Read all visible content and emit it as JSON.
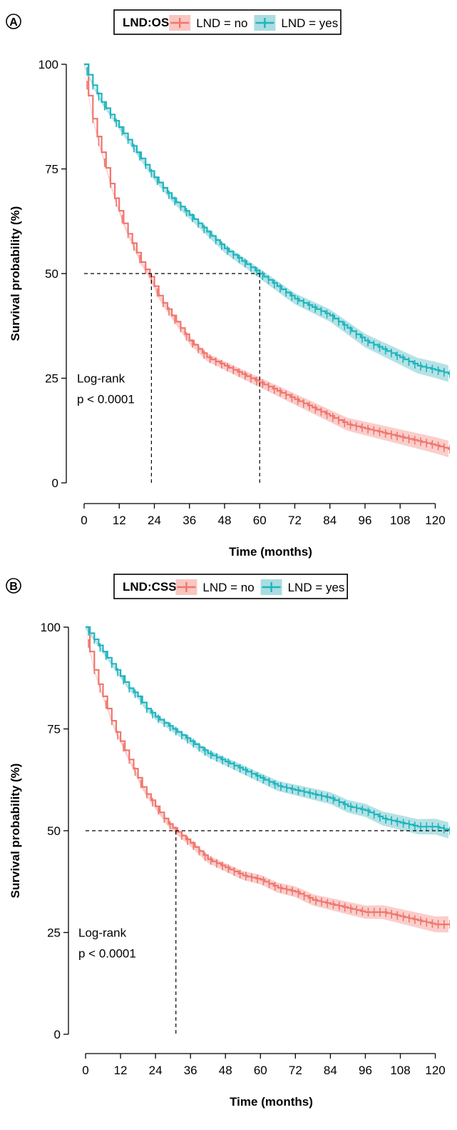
{
  "colors": {
    "no": "#F0766E",
    "yes": "#1FB5BE",
    "no_band": "#F9C6C2",
    "yes_band": "#A9DDE0",
    "axis": "#000000",
    "guide": "#000000"
  },
  "chart_data": [
    {
      "type": "line",
      "panel_label": "A",
      "legend_title": "LND:OS",
      "legend_placement": "top",
      "xlabel": "Time (months)",
      "ylabel": "Survival probability (%)",
      "xlim": [
        0,
        125
      ],
      "ylim": [
        0,
        100
      ],
      "x_ticks": [
        0,
        12,
        24,
        36,
        48,
        60,
        72,
        84,
        96,
        108,
        120
      ],
      "y_ticks": [
        0,
        25,
        50,
        75,
        100
      ],
      "annotation": [
        "Log-rank",
        "p < 0.0001"
      ],
      "median_lines": [
        23,
        60
      ],
      "series": [
        {
          "name": "LND = no",
          "color_key": "no",
          "x": [
            0,
            2,
            4,
            6,
            8,
            10,
            12,
            14,
            16,
            18,
            20,
            22,
            24,
            26,
            30,
            36,
            42,
            48,
            54,
            60,
            66,
            72,
            78,
            84,
            90,
            96,
            102,
            108,
            114,
            120,
            125
          ],
          "y": [
            100,
            90,
            84,
            79,
            74,
            69,
            65,
            61,
            58,
            55,
            52,
            50,
            47,
            44,
            40,
            34,
            30,
            28,
            26,
            24,
            22,
            20,
            18,
            16,
            14,
            13,
            12,
            11,
            10,
            9,
            8
          ]
        },
        {
          "name": "LND = yes",
          "color_key": "yes",
          "x": [
            0,
            3,
            6,
            9,
            12,
            15,
            18,
            21,
            24,
            30,
            36,
            42,
            48,
            54,
            60,
            66,
            72,
            78,
            84,
            90,
            96,
            102,
            108,
            114,
            120,
            125
          ],
          "y": [
            100,
            95,
            91,
            88,
            85,
            82,
            79,
            76,
            73,
            68,
            64,
            60,
            56,
            53,
            50,
            47,
            44,
            42,
            40,
            37,
            34,
            32,
            30,
            28,
            27,
            26
          ]
        }
      ]
    },
    {
      "type": "line",
      "panel_label": "B",
      "legend_title": "LND:CSS",
      "legend_placement": "top",
      "xlabel": "Time (months)",
      "ylabel": "Survival probability (%)",
      "xlim": [
        0,
        125
      ],
      "ylim": [
        0,
        100
      ],
      "x_ticks": [
        0,
        12,
        24,
        36,
        48,
        60,
        72,
        84,
        96,
        108,
        120
      ],
      "y_ticks": [
        0,
        25,
        50,
        75,
        100
      ],
      "annotation": [
        "Log-rank",
        "p < 0.0001"
      ],
      "median_lines": [
        31
      ],
      "series": [
        {
          "name": "LND = no",
          "color_key": "no",
          "x": [
            0,
            2,
            4,
            6,
            8,
            10,
            12,
            14,
            16,
            18,
            20,
            24,
            28,
            31,
            36,
            42,
            48,
            54,
            60,
            66,
            72,
            78,
            84,
            90,
            96,
            102,
            108,
            114,
            120,
            125
          ],
          "y": [
            100,
            92,
            87,
            83,
            79,
            75,
            72,
            69,
            66,
            63,
            60,
            56,
            52,
            50,
            47,
            43,
            41,
            39,
            38,
            36,
            35,
            33,
            32,
            31,
            30,
            30,
            29,
            28,
            27,
            27
          ]
        },
        {
          "name": "LND = yes",
          "color_key": "yes",
          "x": [
            0,
            3,
            6,
            9,
            12,
            15,
            18,
            21,
            24,
            30,
            36,
            42,
            48,
            54,
            60,
            66,
            72,
            78,
            84,
            90,
            96,
            102,
            108,
            114,
            120,
            125
          ],
          "y": [
            100,
            97,
            94,
            91,
            88,
            85,
            83,
            80,
            78,
            75,
            72,
            69,
            67,
            65,
            63,
            61,
            60,
            59,
            58,
            56,
            55,
            53,
            52,
            51,
            51,
            50
          ]
        }
      ]
    }
  ]
}
